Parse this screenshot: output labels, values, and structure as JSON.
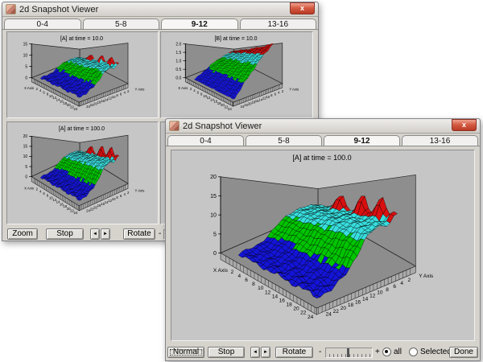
{
  "back_window": {
    "title": "2d Snapshot Viewer",
    "close_label": "x",
    "tabs": [
      {
        "label": "0-4",
        "selected": false
      },
      {
        "label": "5-8",
        "selected": false
      },
      {
        "label": "9-12",
        "selected": true
      },
      {
        "label": "13-16",
        "selected": false
      }
    ],
    "toolbar": {
      "zoom": "Zoom",
      "stop": "Stop",
      "prev": "◄",
      "next": "►",
      "rotate": "Rotate",
      "minus": "-"
    }
  },
  "front_window": {
    "title": "2d Snapshot Viewer",
    "close_label": "x",
    "tabs": [
      {
        "label": "0-4",
        "selected": false
      },
      {
        "label": "5-8",
        "selected": false
      },
      {
        "label": "9-12",
        "selected": true
      },
      {
        "label": "13-16",
        "selected": false
      }
    ],
    "toolbar": {
      "normal": "Normal",
      "stop": "Stop",
      "prev": "◄",
      "next": "►",
      "rotate": "Rotate",
      "minus": "-",
      "plus": "+",
      "radio_all": "all",
      "radio_selected": "Selected",
      "done": "Done",
      "all_checked": true
    }
  },
  "chart_data": [
    {
      "id": "bp1",
      "window": "back",
      "type": "surface3d",
      "title": "[A] at time =  10.0",
      "xlabel": "X Axis",
      "ylabel": "Y Axis",
      "x_ticks": [
        "2",
        "4",
        "6",
        "8",
        "10",
        "12",
        "14",
        "16",
        "18",
        "20",
        "22",
        "24"
      ],
      "y_ticks": [
        "2",
        "4",
        "6",
        "8",
        "10",
        "12",
        "14",
        "16",
        "18",
        "20",
        "22",
        "24"
      ],
      "z_ticks": [
        "0",
        "5",
        "10",
        "15"
      ],
      "zmax": 15,
      "surface": {
        "kind": "peaks",
        "front": 0.7,
        "amp": 6.0,
        "mid": 13,
        "slope": 2.4,
        "noise": 0.45,
        "peak_h": 3.2,
        "peak_y": 2.2,
        "peaks_x": [
          8.5,
          14.5,
          19.5,
          23.5
        ],
        "peak_scales": [
          1,
          1,
          1,
          0.35
        ]
      },
      "bands": {
        "blue": 0.167,
        "green": 0.367,
        "cyan": 0.48
      },
      "colors": {
        "blue": "#1414d8",
        "green": "#00c400",
        "cyan": "#38dede",
        "red": "#d81010",
        "wall": "#8e8e8e",
        "floor": "#8d8d8d",
        "ribbon": "#aaaaaa"
      }
    },
    {
      "id": "bp2",
      "window": "back",
      "type": "surface3d",
      "title": "[B] at time =  10.0",
      "xlabel": "X Axis",
      "ylabel": "Y Axis",
      "x_ticks": [
        "2",
        "4",
        "6",
        "8",
        "10",
        "12",
        "14",
        "16",
        "18",
        "20",
        "22",
        "24"
      ],
      "y_ticks": [
        "2",
        "4",
        "6",
        "8",
        "10",
        "12",
        "14",
        "16",
        "18",
        "20",
        "22",
        "24"
      ],
      "z_ticks": [
        "0.0",
        "0.5",
        "1.0",
        "1.5",
        "2.0"
      ],
      "zmax": 2,
      "surface": {
        "kind": "ramp",
        "max": 1.95,
        "pow": 1.15,
        "xf": 0.18,
        "noise": 0.05
      },
      "bands": {
        "blue": 0.225,
        "green": 0.525,
        "cyan": 0.725
      },
      "colors": {
        "blue": "#1414d8",
        "green": "#00c400",
        "cyan": "#38dede",
        "red": "#d81010",
        "wall": "#8e8e8e",
        "floor": "#8d8d8d",
        "ribbon": "#aaaaaa"
      }
    },
    {
      "id": "bp3",
      "window": "back",
      "type": "surface3d",
      "title": "[A] at time =  100.0",
      "xlabel": "X Axis",
      "ylabel": "Y Axis",
      "x_ticks": [
        "2",
        "4",
        "6",
        "8",
        "10",
        "12",
        "14",
        "16",
        "18",
        "20",
        "22",
        "24"
      ],
      "y_ticks": [
        "2",
        "4",
        "6",
        "8",
        "10",
        "12",
        "14",
        "16",
        "18",
        "20",
        "22",
        "24"
      ],
      "z_ticks": [
        "0",
        "5",
        "10",
        "15",
        "20"
      ],
      "zmax": 20,
      "surface": {
        "kind": "peaks",
        "front": 0.8,
        "amp": 9.2,
        "mid": 13,
        "slope": 2.2,
        "noise": 0.5,
        "peak_h": 5.5,
        "peak_y": 2.2,
        "peaks_x": [
          8.5,
          14.5,
          19.5,
          23.5
        ],
        "peak_scales": [
          1,
          1,
          1,
          0.35
        ]
      },
      "bands": {
        "blue": 0.15,
        "green": 0.375,
        "cyan": 0.525
      },
      "colors": {
        "blue": "#1414d8",
        "green": "#00c400",
        "cyan": "#38dede",
        "red": "#d81010",
        "wall": "#8e8e8e",
        "floor": "#8d8d8d",
        "ribbon": "#aaaaaa"
      }
    },
    {
      "id": "fp1",
      "window": "front",
      "type": "surface3d",
      "title": "[A] at time =  100.0",
      "xlabel": "X Axis",
      "ylabel": "Y Axis",
      "x_ticks": [
        "2",
        "4",
        "6",
        "8",
        "10",
        "12",
        "14",
        "16",
        "18",
        "20",
        "22",
        "24"
      ],
      "y_ticks": [
        "2",
        "4",
        "6",
        "8",
        "10",
        "12",
        "14",
        "16",
        "18",
        "20",
        "22",
        "24"
      ],
      "z_ticks": [
        "0",
        "5",
        "10",
        "15",
        "20"
      ],
      "zmax": 20,
      "surface": {
        "kind": "peaks",
        "front": 0.8,
        "amp": 9.2,
        "mid": 13,
        "slope": 2.2,
        "noise": 0.5,
        "peak_h": 5.5,
        "peak_y": 2.2,
        "peaks_x": [
          8.5,
          14.5,
          19.5,
          23.5
        ],
        "peak_scales": [
          1,
          1,
          1,
          0.35
        ]
      },
      "bands": {
        "blue": 0.15,
        "green": 0.375,
        "cyan": 0.525
      },
      "colors": {
        "blue": "#1414d8",
        "green": "#00c400",
        "cyan": "#38dede",
        "red": "#d81010",
        "wall": "#8e8e8e",
        "floor": "#8d8d8d",
        "ribbon": "#aaaaaa"
      }
    }
  ]
}
